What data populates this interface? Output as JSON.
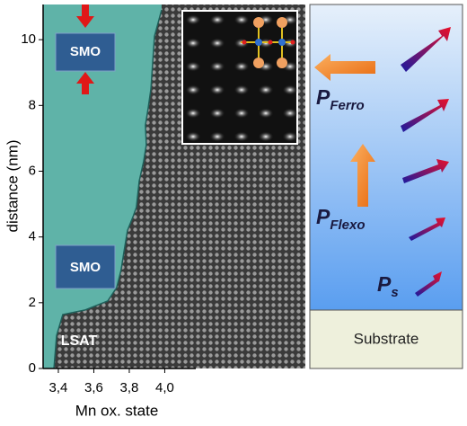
{
  "chart_data": {
    "type": "area",
    "xlabel": "Mn ox. state",
    "ylabel": "distance (nm)",
    "xlim": [
      3.314,
      4.175
    ],
    "ylim": [
      0,
      11.07
    ],
    "xticks": [
      {
        "value": 3.4,
        "label": "3,4"
      },
      {
        "value": 3.6,
        "label": "3,6"
      },
      {
        "value": 3.8,
        "label": "3,8"
      },
      {
        "value": 4.0,
        "label": "4,0"
      }
    ],
    "yticks": [
      0,
      2,
      4,
      6,
      8,
      10
    ],
    "series": [
      {
        "color": "#5fb3a8",
        "x": [
          3.375,
          3.39,
          3.425,
          3.552,
          3.678,
          3.729,
          3.754,
          3.77,
          3.79,
          3.82,
          3.84,
          3.856,
          3.881,
          3.896,
          3.891,
          3.906,
          3.922,
          3.932,
          3.942,
          3.982
        ],
        "values": [
          0,
          1.0,
          1.64,
          1.78,
          2.05,
          2.46,
          3.0,
          3.55,
          4.2,
          4.6,
          4.9,
          5.7,
          6.3,
          6.8,
          7.4,
          7.9,
          8.5,
          9.3,
          10.1,
          10.9
        ]
      }
    ],
    "annotations": [
      "SMO",
      "SMO",
      "LSAT"
    ]
  },
  "schematic": {
    "labels": [
      {
        "main": "P",
        "sub": "Ferro"
      },
      {
        "main": "P",
        "sub": "Flexo"
      },
      {
        "main": "P",
        "sub": "s"
      }
    ],
    "substrate": "Substrate"
  }
}
